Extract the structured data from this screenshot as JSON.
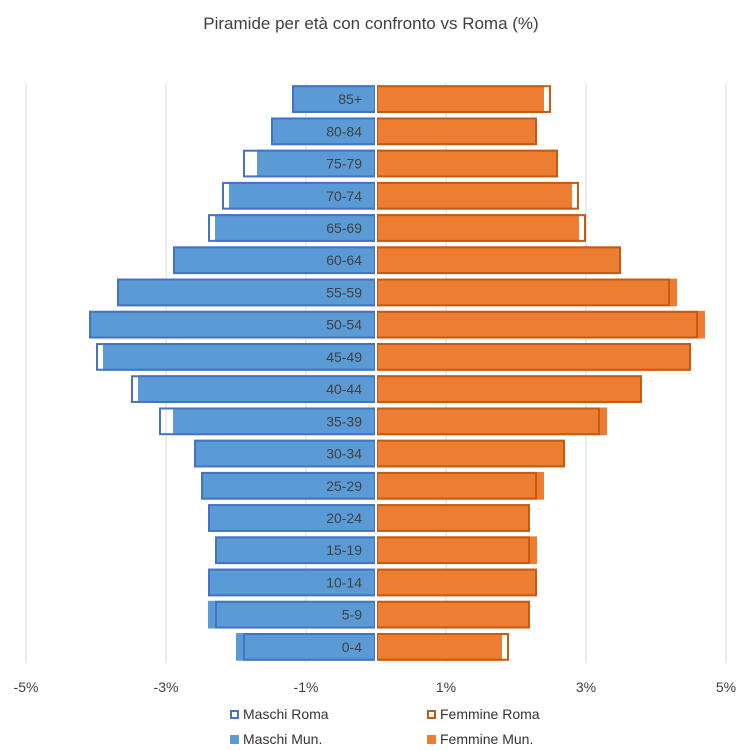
{
  "chart_data": {
    "type": "bar",
    "orientation": "horizontal-population-pyramid",
    "title": "Piramide per età con confronto vs Roma (%)",
    "categories": [
      "85+",
      "80-84",
      "75-79",
      "70-74",
      "65-69",
      "60-64",
      "55-59",
      "50-54",
      "45-49",
      "40-44",
      "35-39",
      "30-34",
      "25-29",
      "20-24",
      "15-19",
      "10-14",
      "5-9",
      "0-4"
    ],
    "series": [
      {
        "name": "Maschi Mun.",
        "kind": "filled",
        "color": "#5b9bd5",
        "values": [
          -1.2,
          -1.5,
          -1.7,
          -2.1,
          -2.3,
          -2.9,
          -3.7,
          -4.1,
          -3.9,
          -3.4,
          -2.9,
          -2.6,
          -2.5,
          -2.4,
          -2.3,
          -2.4,
          -2.4,
          -2.0
        ]
      },
      {
        "name": "Femmine Mun.",
        "kind": "filled",
        "color": "#ed7d31",
        "values": [
          2.4,
          2.3,
          2.6,
          2.8,
          2.9,
          3.5,
          4.3,
          4.7,
          4.5,
          3.8,
          3.3,
          2.7,
          2.4,
          2.2,
          2.3,
          2.3,
          2.2,
          1.8
        ]
      },
      {
        "name": "Maschi Roma",
        "kind": "outline",
        "color": "#4472c4",
        "values": [
          -1.2,
          -1.5,
          -1.9,
          -2.2,
          -2.4,
          -2.9,
          -3.7,
          -4.1,
          -4.0,
          -3.5,
          -3.1,
          -2.6,
          -2.5,
          -2.4,
          -2.3,
          -2.4,
          -2.3,
          -1.9
        ]
      },
      {
        "name": "Femmine Roma",
        "kind": "outline",
        "color": "#c55a11",
        "values": [
          2.5,
          2.3,
          2.6,
          2.9,
          3.0,
          3.5,
          4.2,
          4.6,
          4.5,
          3.8,
          3.2,
          2.7,
          2.3,
          2.2,
          2.2,
          2.3,
          2.2,
          1.9
        ]
      }
    ],
    "xlim": [
      -5,
      5
    ],
    "xticks": [
      -5,
      -3,
      -1,
      1,
      3,
      5
    ],
    "xtick_labels": [
      "-5%",
      "-3%",
      "-1%",
      "1%",
      "3%",
      "5%"
    ],
    "grid": "vertical",
    "legend_placement": "bottom",
    "xlabel": "",
    "ylabel": ""
  },
  "legend": [
    {
      "label": "Maschi Roma",
      "kind": "outline",
      "color": "#4472c4"
    },
    {
      "label": "Femmine Roma",
      "kind": "outline",
      "color": "#c55a11"
    },
    {
      "label": "Maschi Mun.",
      "kind": "filled",
      "color": "#5b9bd5"
    },
    {
      "label": "Femmine Mun.",
      "kind": "filled",
      "color": "#ed7d31"
    }
  ],
  "colors": {
    "grid": "#d9d9d9",
    "axis_label": "#404040",
    "category_label": "#404040"
  }
}
